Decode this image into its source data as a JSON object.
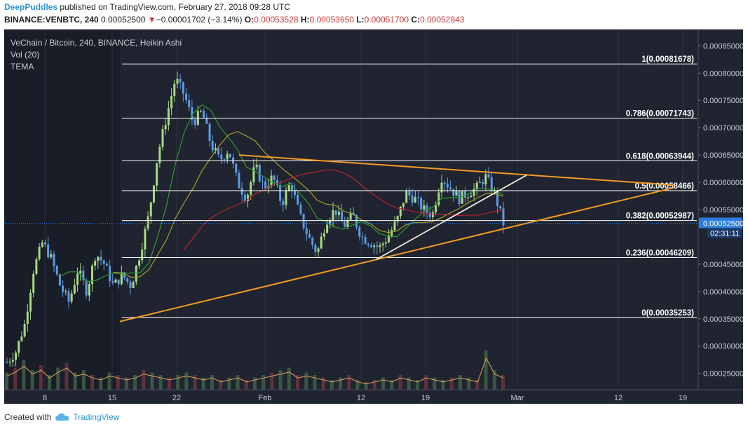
{
  "header": {
    "user": "DeepPuddles",
    "published": " published on TradingView.com, February 27, 2018 09:28 UTC",
    "symbol_line": "BINANCE:VENBTC, 240",
    "last": "0.00052500",
    "change_arrow": "▼",
    "change": "−0.00001702 (−3.14%)",
    "o_label": "O:",
    "o_value": "0.00053528",
    "h_label": "H:",
    "h_value": "0.00053650",
    "l_label": "L:",
    "l_value": "0.00051700",
    "c_label": "C:",
    "c_value": "0.00052843"
  },
  "legend": {
    "title": "VeChain / Bitcoin, 240, BINANCE, Heikin Ashi",
    "vol": "Vol (20)",
    "tema": "TEMA"
  },
  "footer": {
    "created_with": "Created with",
    "brand": "TradingView"
  },
  "colors": {
    "background": "#1f2430",
    "up_candle": "#a8d982",
    "down_candle": "#5b9be6",
    "fib_line": "#ffffff",
    "trendline": "#f59a23",
    "inner_trendline": "#f2ead8",
    "ema_green": "#2f9b2f",
    "ema_olive": "#a3a02a",
    "ema_red": "#b8242a",
    "last_price_tag": "#2b7de0"
  },
  "chart_data": {
    "type": "candlestick",
    "title": "VeChain / Bitcoin, 240, BINANCE, Heikin Ashi",
    "x_tick_labels": [
      "8",
      "15",
      "22",
      "Feb",
      "12",
      "19",
      "Mar",
      "12",
      "19"
    ],
    "y_tick_labels": [
      "0.00085000",
      "0.00080000",
      "0.00075000",
      "0.00070000",
      "0.00065000",
      "0.00060000",
      "0.00055000",
      "0.00045000",
      "0.00040000",
      "0.00035000",
      "0.00030000",
      "0.00025000"
    ],
    "ylim": [
      0.00022,
      0.00088
    ],
    "last_price_label": "0.00052500",
    "countdown_label": "02:31:11",
    "fib_levels": [
      {
        "label": "1(0.00081678)",
        "value": 0.00081678
      },
      {
        "label": "0.786(0.00071743)",
        "value": 0.00071743
      },
      {
        "label": "0.618(0.00063944)",
        "value": 0.00063944
      },
      {
        "label": "0.5(0.00058466)",
        "value": 0.00058466
      },
      {
        "label": "0.382(0.00052987)",
        "value": 0.00052987
      },
      {
        "label": "0.236(0.00046209)",
        "value": 0.00046209
      },
      {
        "label": "0(0.00035253)",
        "value": 0.00035253
      }
    ],
    "trend_path": [
      [
        0,
        0.00027
      ],
      [
        2,
        0.00029
      ],
      [
        4,
        0.00034
      ],
      [
        6,
        0.00044
      ],
      [
        7,
        0.00049
      ],
      [
        8,
        0.00046
      ],
      [
        9,
        0.00041
      ],
      [
        10,
        0.00038
      ],
      [
        11,
        0.00044
      ],
      [
        12,
        0.0004
      ],
      [
        13,
        0.00047
      ],
      [
        14,
        0.00045
      ],
      [
        15,
        0.00041
      ],
      [
        16,
        0.00043
      ],
      [
        17,
        0.00041
      ],
      [
        18,
        0.00047
      ],
      [
        19,
        0.00054
      ],
      [
        20,
        0.00065
      ],
      [
        21,
        0.00072
      ],
      [
        22,
        0.00079
      ],
      [
        23,
        0.00076
      ],
      [
        24,
        0.00071
      ],
      [
        25,
        0.00073
      ],
      [
        26,
        0.00067
      ],
      [
        27,
        0.00064
      ],
      [
        28,
        0.00066
      ],
      [
        29,
        0.0006
      ],
      [
        30,
        0.00057
      ],
      [
        31,
        0.00063
      ],
      [
        32,
        0.00059
      ],
      [
        33,
        0.00061
      ],
      [
        34,
        0.00056
      ],
      [
        35,
        0.0006
      ],
      [
        36,
        0.00054
      ],
      [
        37,
        0.0005
      ],
      [
        38,
        0.00047
      ],
      [
        39,
        0.00053
      ],
      [
        40,
        0.00055
      ],
      [
        41,
        0.00052
      ],
      [
        42,
        0.00054
      ],
      [
        43,
        0.0005
      ],
      [
        44,
        0.00049
      ],
      [
        45,
        0.00048
      ],
      [
        46,
        0.0005
      ],
      [
        47,
        0.00053
      ],
      [
        48,
        0.00058
      ],
      [
        49,
        0.00057
      ],
      [
        50,
        0.00055
      ],
      [
        51,
        0.00054
      ],
      [
        52,
        0.00061
      ],
      [
        53,
        0.00059
      ],
      [
        54,
        0.00057
      ],
      [
        55,
        0.00058
      ],
      [
        56,
        0.00059
      ],
      [
        57,
        0.00061
      ],
      [
        58,
        0.00058
      ],
      [
        59,
        0.000525
      ]
    ],
    "volume_relative": [
      0.35,
      0.45,
      0.6,
      0.4,
      0.5,
      0.3,
      0.45,
      0.55,
      0.35,
      0.4,
      0.3,
      0.25,
      0.35,
      0.3,
      0.25,
      0.3,
      0.4,
      0.35,
      0.3,
      0.25,
      0.3,
      0.35,
      0.3,
      0.25,
      0.3,
      0.2,
      0.25,
      0.3,
      0.2,
      0.25,
      0.3,
      0.35,
      0.4,
      0.45,
      0.3,
      0.35,
      0.3,
      0.25,
      0.2,
      0.25,
      0.3,
      0.2,
      0.15,
      0.2,
      0.25,
      0.2,
      0.3,
      0.25,
      0.2,
      0.3,
      0.25,
      0.2,
      0.25,
      0.3,
      0.25,
      0.2,
      0.8,
      0.4,
      0.3
    ]
  }
}
